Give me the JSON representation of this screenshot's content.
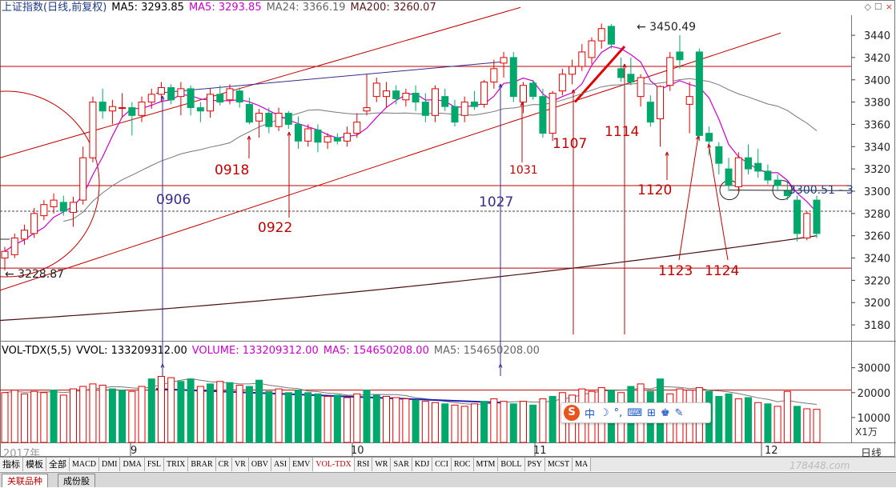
{
  "price_panel": {
    "title": "上证指数(日线,前复权)",
    "ma5a": "MA5: 3293.85",
    "ma5b": "MA5: 3293.85",
    "ma24": "MA24: 3366.19",
    "ma200": "MA200: 3260.07",
    "annot_high": "3450.49",
    "annot_low": "3228.87",
    "annot_right": "3300.51 - 3"
  },
  "volume_panel": {
    "title": "VOL-TDX(5,5)",
    "vvol": "VVOL: 133209312.00",
    "volume": "VOLUME: 133209312.00",
    "ma5": "MA5: 154650208.00",
    "ma5b": "MA5: 154650208.00",
    "unit": "X1万"
  },
  "date_labels": [
    "0906",
    "0918",
    "0922",
    "1027",
    "1031",
    "1107",
    "1114",
    "1120",
    "1123",
    "1124"
  ],
  "x_axis": {
    "year": "2017年",
    "m9": "9",
    "m10": "10",
    "m11": "11",
    "m12": "12",
    "period": "日线"
  },
  "indicator_tabs": [
    "指标",
    "模板",
    "全部",
    "MACD",
    "DMI",
    "DMA",
    "FSL",
    "TRIX",
    "BRAR",
    "CR",
    "VR",
    "OBV",
    "ASI",
    "EMV",
    "VOL-TDX",
    "RSI",
    "WR",
    "SAR",
    "KDJ",
    "CCI",
    "ROC",
    "MTM",
    "BOLL",
    "PSY",
    "MCST",
    "MA"
  ],
  "bottom_tabs": [
    "关联品种",
    "成份股"
  ],
  "watermark": "178448.com",
  "top_icons": [
    "◇",
    "☐",
    "×"
  ],
  "chart_data": {
    "type": "candlestick",
    "y_ticks": [
      3180,
      3200,
      3220,
      3240,
      3260,
      3280,
      3300,
      3320,
      3340,
      3360,
      3380,
      3400,
      3420,
      3440
    ],
    "ylim": [
      3170,
      3458
    ],
    "vol_ticks": [
      "30000",
      "20000",
      "10000"
    ],
    "vol_ylim": [
      0,
      36000
    ],
    "candles": [
      [
        3240,
        3250,
        3228.87,
        3246
      ],
      [
        3243,
        3262,
        3240,
        3258
      ],
      [
        3257,
        3270,
        3252,
        3265
      ],
      [
        3262,
        3285,
        3258,
        3280
      ],
      [
        3278,
        3292,
        3274,
        3288
      ],
      [
        3286,
        3298,
        3280,
        3292
      ],
      [
        3290,
        3296,
        3278,
        3282
      ],
      [
        3281,
        3295,
        3268,
        3290
      ],
      [
        3292,
        3340,
        3288,
        3330
      ],
      [
        3330,
        3385,
        3326,
        3380
      ],
      [
        3380,
        3392,
        3365,
        3372
      ],
      [
        3372,
        3382,
        3360,
        3376
      ],
      [
        3375,
        3388,
        3366,
        3375
      ],
      [
        3375,
        3380,
        3350,
        3368
      ],
      [
        3368,
        3385,
        3362,
        3380
      ],
      [
        3380,
        3392,
        3374,
        3387
      ],
      [
        3387,
        3398,
        3380,
        3393
      ],
      [
        3393,
        3396,
        3378,
        3382
      ],
      [
        3385,
        3398,
        3368,
        3392
      ],
      [
        3392,
        3395,
        3368,
        3375
      ],
      [
        3375,
        3380,
        3362,
        3372
      ],
      [
        3372,
        3392,
        3366,
        3387
      ],
      [
        3387,
        3395,
        3377,
        3380
      ],
      [
        3382,
        3396,
        3378,
        3392
      ],
      [
        3390,
        3393,
        3375,
        3380
      ],
      [
        3378,
        3384,
        3360,
        3362
      ],
      [
        3363,
        3374,
        3348,
        3370
      ],
      [
        3370,
        3375,
        3352,
        3358
      ],
      [
        3358,
        3375,
        3354,
        3370
      ],
      [
        3370,
        3372,
        3356,
        3360
      ],
      [
        3360,
        3367,
        3338,
        3345
      ],
      [
        3345,
        3360,
        3340,
        3356
      ],
      [
        3355,
        3360,
        3335,
        3344
      ],
      [
        3344,
        3352,
        3338,
        3349
      ],
      [
        3348,
        3352,
        3342,
        3345
      ],
      [
        3345,
        3358,
        3340,
        3352
      ],
      [
        3352,
        3370,
        3348,
        3362
      ],
      [
        3372,
        3405,
        3368,
        3375
      ],
      [
        3385,
        3402,
        3380,
        3397
      ],
      [
        3385,
        3398,
        3375,
        3390
      ],
      [
        3390,
        3395,
        3378,
        3383
      ],
      [
        3382,
        3392,
        3376,
        3388
      ],
      [
        3388,
        3395,
        3372,
        3380
      ],
      [
        3380,
        3388,
        3362,
        3368
      ],
      [
        3368,
        3395,
        3362,
        3392
      ],
      [
        3385,
        3392,
        3372,
        3376
      ],
      [
        3376,
        3382,
        3358,
        3362
      ],
      [
        3368,
        3385,
        3362,
        3380
      ],
      [
        3380,
        3390,
        3373,
        3376
      ],
      [
        3378,
        3400,
        3375,
        3398
      ],
      [
        3398,
        3418,
        3392,
        3410
      ],
      [
        3415,
        3425,
        3402,
        3420
      ],
      [
        3420,
        3425,
        3380,
        3385
      ],
      [
        3380,
        3398,
        3370,
        3395
      ],
      [
        3397,
        3400,
        3382,
        3385
      ],
      [
        3385,
        3392,
        3348,
        3352
      ],
      [
        3352,
        3390,
        3345,
        3388
      ],
      [
        3390,
        3410,
        3386,
        3405
      ],
      [
        3405,
        3418,
        3396,
        3412
      ],
      [
        3412,
        3432,
        3408,
        3425
      ],
      [
        3420,
        3438,
        3414,
        3435
      ],
      [
        3435,
        3450.49,
        3428,
        3446
      ],
      [
        3448,
        3450,
        3428,
        3432
      ],
      [
        3410,
        3420,
        3398,
        3402
      ],
      [
        3405,
        3420,
        3395,
        3398
      ],
      [
        3385,
        3405,
        3376,
        3402
      ],
      [
        3380,
        3386,
        3358,
        3362
      ],
      [
        3365,
        3395,
        3340,
        3394
      ],
      [
        3395,
        3425,
        3390,
        3420
      ],
      [
        3425,
        3440,
        3410,
        3418
      ],
      [
        3378,
        3398,
        3352,
        3385
      ],
      [
        3425,
        3428,
        3345,
        3350
      ],
      [
        3352,
        3358,
        3332,
        3345
      ],
      [
        3340,
        3344,
        3315,
        3325
      ],
      [
        3320,
        3330,
        3300,
        3305
      ],
      [
        3304,
        3335,
        3300,
        3330
      ],
      [
        3330,
        3342,
        3315,
        3320
      ],
      [
        3325,
        3338,
        3312,
        3318
      ],
      [
        3318,
        3324,
        3306,
        3310
      ],
      [
        3310,
        3315,
        3300,
        3305
      ],
      [
        3300,
        3308,
        3292,
        3296
      ],
      [
        3292,
        3296,
        3255,
        3262
      ],
      [
        3258,
        3282,
        3256,
        3280
      ],
      [
        3292,
        3296,
        3258,
        3262
      ]
    ],
    "volume": [
      [
        20000,
        1
      ],
      [
        21000,
        1
      ],
      [
        19500,
        1
      ],
      [
        20500,
        1
      ],
      [
        20000,
        1
      ],
      [
        21000,
        0
      ],
      [
        19000,
        1
      ],
      [
        21500,
        1
      ],
      [
        22500,
        1
      ],
      [
        23500,
        1
      ],
      [
        23000,
        1
      ],
      [
        21500,
        0
      ],
      [
        21000,
        0
      ],
      [
        20500,
        1
      ],
      [
        22500,
        1
      ],
      [
        25500,
        0
      ],
      [
        26500,
        1
      ],
      [
        26000,
        1
      ],
      [
        24500,
        0
      ],
      [
        25500,
        0
      ],
      [
        22500,
        1
      ],
      [
        23500,
        0
      ],
      [
        24500,
        1
      ],
      [
        24000,
        0
      ],
      [
        23000,
        1
      ],
      [
        22500,
        0
      ],
      [
        25000,
        0
      ],
      [
        20500,
        0
      ],
      [
        21500,
        1
      ],
      [
        20000,
        0
      ],
      [
        21000,
        0
      ],
      [
        20000,
        0
      ],
      [
        19500,
        0
      ],
      [
        18500,
        1
      ],
      [
        19000,
        0
      ],
      [
        18000,
        1
      ],
      [
        19500,
        1
      ],
      [
        21000,
        0
      ],
      [
        19000,
        0
      ],
      [
        18500,
        1
      ],
      [
        18000,
        1
      ],
      [
        17500,
        1
      ],
      [
        17000,
        0
      ],
      [
        16500,
        1
      ],
      [
        16000,
        1
      ],
      [
        15500,
        0
      ],
      [
        15000,
        1
      ],
      [
        14500,
        1
      ],
      [
        15500,
        1
      ],
      [
        16500,
        0
      ],
      [
        17500,
        1
      ],
      [
        16500,
        1
      ],
      [
        15500,
        0
      ],
      [
        16500,
        1
      ],
      [
        15000,
        0
      ],
      [
        17500,
        1
      ],
      [
        18500,
        0
      ],
      [
        20000,
        1
      ],
      [
        19000,
        1
      ],
      [
        21500,
        1
      ],
      [
        20500,
        1
      ],
      [
        22000,
        1
      ],
      [
        21000,
        0
      ],
      [
        20000,
        1
      ],
      [
        22500,
        0
      ],
      [
        23500,
        1
      ],
      [
        20500,
        0
      ],
      [
        25500,
        0
      ],
      [
        19500,
        1
      ],
      [
        21500,
        1
      ],
      [
        21000,
        1
      ],
      [
        22000,
        1
      ],
      [
        20500,
        0
      ],
      [
        18500,
        0
      ],
      [
        19500,
        0
      ],
      [
        17500,
        1
      ],
      [
        18000,
        0
      ],
      [
        16000,
        1
      ],
      [
        15500,
        0
      ],
      [
        14500,
        1
      ],
      [
        20500,
        1
      ],
      [
        14500,
        0
      ],
      [
        13500,
        1
      ],
      [
        13300,
        1
      ]
    ]
  }
}
